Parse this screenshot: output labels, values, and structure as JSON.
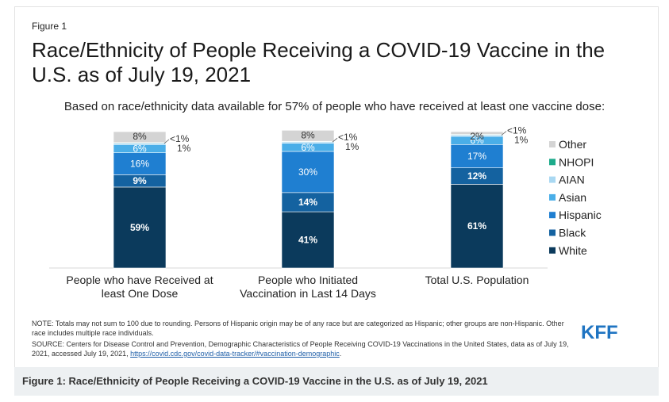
{
  "figure_label": "Figure 1",
  "kff_logo": "KFF",
  "note_text": "NOTE: Totals may not sum to 100 due to rounding. Persons of Hispanic origin may be of any race but are categorized as Hispanic; other groups are non-Hispanic. Other race includes multiple race individuals.",
  "source_text": "SOURCE: Centers for Disease Control and Prevention, Demographic Characteristics of People Receiving COVID-19 Vaccinations in the United States, data as of July 19, 2021, accessed July 19, 2021,",
  "source_link": "https://covid.cdc.gov/covid-data-tracker/#vaccination-demographic",
  "source_end": ".",
  "caption": "Figure 1: Race/Ethnicity of People Receiving a COVID-19 Vaccine in the U.S. as of July 19, 2021",
  "chart_data": {
    "type": "bar",
    "stacked": true,
    "title": "Race/Ethnicity of People Receiving a COVID-19 Vaccine in the U.S. as of July 19, 2021",
    "subtitle": "Based on race/ethnicity data available for 57% of people who have received at least one vaccine dose:",
    "categories": [
      [
        "People who have Received at",
        "least One Dose"
      ],
      [
        "People who Initiated",
        "Vaccination in Last 14 Days"
      ],
      [
        "Total U.S. Population"
      ]
    ],
    "legend_position": "right",
    "series": [
      {
        "name": "White",
        "color": "#0b3a5c",
        "values": [
          59,
          41,
          61
        ],
        "labels": [
          "59%",
          "41%",
          "61%"
        ]
      },
      {
        "name": "Black",
        "color": "#1462a0",
        "values": [
          9,
          14,
          12
        ],
        "labels": [
          "9%",
          "14%",
          "12%"
        ]
      },
      {
        "name": "Hispanic",
        "color": "#1f7fd1",
        "values": [
          16,
          30,
          17
        ],
        "labels": [
          "16%",
          "30%",
          "17%"
        ]
      },
      {
        "name": "Asian",
        "color": "#4aaee8",
        "values": [
          6,
          6,
          6
        ],
        "labels": [
          "6%",
          "6%",
          "6%"
        ]
      },
      {
        "name": "AIAN",
        "color": "#a9d8f2",
        "values": [
          1,
          1,
          1
        ],
        "labels": [
          "1%",
          "1%",
          "1%"
        ]
      },
      {
        "name": "NHOPI",
        "color": "#1dab8b",
        "values": [
          0.4,
          0.4,
          0.4
        ],
        "labels": [
          "<1%",
          "<1%",
          "<1%"
        ]
      },
      {
        "name": "Other",
        "color": "#d4d4d4",
        "values": [
          8,
          8,
          2
        ],
        "labels": [
          "8%",
          "8%",
          "2%"
        ]
      }
    ]
  }
}
